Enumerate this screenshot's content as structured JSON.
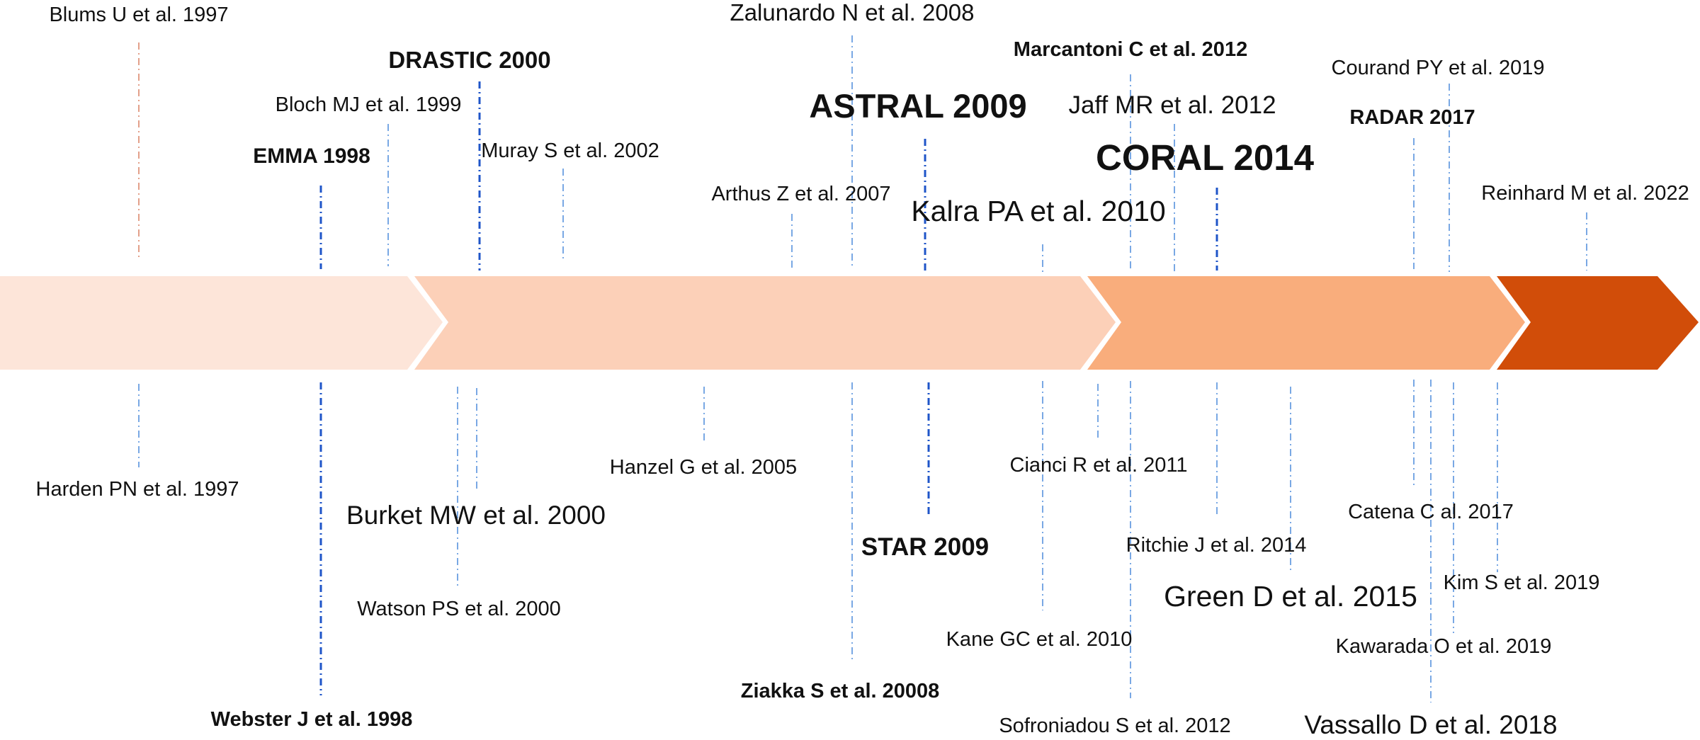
{
  "arrows": [
    {
      "id": "segment-1",
      "color": "#fde5d9"
    },
    {
      "id": "segment-2",
      "color": "#fcd0b8"
    },
    {
      "id": "segment-3",
      "color": "#f9ad7c"
    },
    {
      "id": "segment-4",
      "color": "#d14d09"
    }
  ],
  "line_colors": {
    "thin": "#79a8e4",
    "bold": "#1f55c8",
    "accent": "#e3a08a"
  },
  "above": [
    {
      "id": "blums-1997",
      "text": "Blums U et al. 1997"
    },
    {
      "id": "emma-1998",
      "text": "EMMA 1998"
    },
    {
      "id": "bloch-1999",
      "text": "Bloch MJ et al. 1999"
    },
    {
      "id": "drastic-2000",
      "text": "DRASTIC 2000"
    },
    {
      "id": "muray-2002",
      "text": "Muray S et al. 2002"
    },
    {
      "id": "arthus-2007",
      "text": "Arthus Z et al. 2007"
    },
    {
      "id": "zalunardo-2008",
      "text": "Zalunardo N et al. 2008"
    },
    {
      "id": "astral-2009",
      "text": "ASTRAL 2009"
    },
    {
      "id": "kalra-2010",
      "text": "Kalra PA et al. 2010"
    },
    {
      "id": "marcantoni-2012",
      "text": "Marcantoni C et al. 2012"
    },
    {
      "id": "jaff-2012",
      "text": "Jaff MR et al. 2012"
    },
    {
      "id": "coral-2014",
      "text": "CORAL 2014"
    },
    {
      "id": "radar-2017",
      "text": "RADAR 2017"
    },
    {
      "id": "courand-2019",
      "text": "Courand PY et al. 2019"
    },
    {
      "id": "reinhard-2022",
      "text": "Reinhard M et al. 2022"
    }
  ],
  "below": [
    {
      "id": "harden-1997",
      "text": "Harden PN et al. 1997"
    },
    {
      "id": "webster-1998",
      "text": "Webster J et al. 1998"
    },
    {
      "id": "burket-2000",
      "text": "Burket MW et al. 2000"
    },
    {
      "id": "watson-2000",
      "text": "Watson PS et al. 2000"
    },
    {
      "id": "hanzel-2005",
      "text": "Hanzel G et al. 2005"
    },
    {
      "id": "ziakka-20008",
      "text": "Ziakka S et al. 20008"
    },
    {
      "id": "star-2009",
      "text": "STAR 2009"
    },
    {
      "id": "kane-2010",
      "text": "Kane GC et al. 2010"
    },
    {
      "id": "cianci-2011",
      "text": "Cianci R et al. 2011"
    },
    {
      "id": "sofroniadou-2012",
      "text": "Sofroniadou S et al. 2012"
    },
    {
      "id": "ritchie-2014",
      "text": "Ritchie J et al. 2014"
    },
    {
      "id": "green-2015",
      "text": "Green D et al. 2015"
    },
    {
      "id": "catena-2017",
      "text": "Catena C al. 2017"
    },
    {
      "id": "vassallo-2018",
      "text": "Vassallo D et al. 2018"
    },
    {
      "id": "kim-2019",
      "text": "Kim S et al. 2019"
    },
    {
      "id": "kawarada-2019",
      "text": "Kawarada O et al. 2019"
    }
  ]
}
